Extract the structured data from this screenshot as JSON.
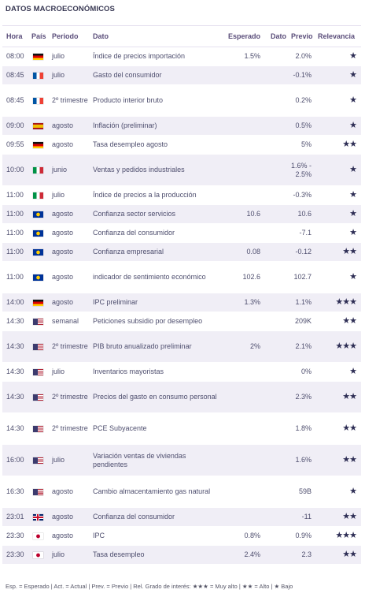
{
  "title": "DATOS MACROECONÓMICOS",
  "columns": {
    "hora": "Hora",
    "pais": "País",
    "periodo": "Periodo",
    "dato": "Dato",
    "esperado": "Esperado",
    "dato_actual": "Dato",
    "previo": "Previo",
    "relevancia": "Relevancia"
  },
  "rows": [
    {
      "hora": "08:00",
      "pais": "de",
      "periodo": "julio",
      "dato": "Índice de precios importación",
      "esperado": "1.5%",
      "actual": "",
      "previo": "2.0%",
      "relevancia": 1
    },
    {
      "hora": "08:45",
      "pais": "fr",
      "periodo": "julio",
      "dato": "Gasto del consumidor",
      "esperado": "",
      "actual": "",
      "previo": "-0.1%",
      "relevancia": 1
    },
    {
      "hora": "08:45",
      "pais": "fr",
      "periodo": "2º trimestre",
      "dato": "Producto interior bruto",
      "esperado": "",
      "actual": "",
      "previo": "0.2%",
      "relevancia": 1
    },
    {
      "hora": "09:00",
      "pais": "es",
      "periodo": "agosto",
      "dato": "Inflación (preliminar)",
      "esperado": "",
      "actual": "",
      "previo": "0.5%",
      "relevancia": 1
    },
    {
      "hora": "09:55",
      "pais": "de",
      "periodo": "agosto",
      "dato": "Tasa desempleo agosto",
      "esperado": "",
      "actual": "",
      "previo": "5%",
      "relevancia": 2
    },
    {
      "hora": "10:00",
      "pais": "it",
      "periodo": "junio",
      "dato": "Ventas y pedidos industriales",
      "esperado": "",
      "actual": "",
      "previo": "1.6% - 2.5%",
      "relevancia": 1
    },
    {
      "hora": "11:00",
      "pais": "it",
      "periodo": "julio",
      "dato": "Índice de precios a la producción",
      "esperado": "",
      "actual": "",
      "previo": "-0.3%",
      "relevancia": 1
    },
    {
      "hora": "11:00",
      "pais": "eu",
      "periodo": "agosto",
      "dato": "Confianza sector servicios",
      "esperado": "10.6",
      "actual": "",
      "previo": "10.6",
      "relevancia": 1
    },
    {
      "hora": "11:00",
      "pais": "eu",
      "periodo": "agosto",
      "dato": "Confianza del consumidor",
      "esperado": "",
      "actual": "",
      "previo": "-7.1",
      "relevancia": 1
    },
    {
      "hora": "11:00",
      "pais": "eu",
      "periodo": "agosto",
      "dato": "Confianza empresarial",
      "esperado": "0.08",
      "actual": "",
      "previo": "-0.12",
      "relevancia": 2
    },
    {
      "hora": "11:00",
      "pais": "eu",
      "periodo": "agosto",
      "dato": "indicador de sentimiento económico",
      "esperado": "102.6",
      "actual": "",
      "previo": "102.7",
      "relevancia": 1
    },
    {
      "hora": "14:00",
      "pais": "de",
      "periodo": "agosto",
      "dato": "IPC preliminar",
      "esperado": "1.3%",
      "actual": "",
      "previo": "1.1%",
      "relevancia": 3
    },
    {
      "hora": "14:30",
      "pais": "us",
      "periodo": "semanal",
      "dato": "Peticiones subsidio por desempleo",
      "esperado": "",
      "actual": "",
      "previo": "209K",
      "relevancia": 2
    },
    {
      "hora": "14:30",
      "pais": "us",
      "periodo": "2º trimestre",
      "dato": "PIB bruto anualizado preliminar",
      "esperado": "2%",
      "actual": "",
      "previo": "2.1%",
      "relevancia": 3
    },
    {
      "hora": "14:30",
      "pais": "us",
      "periodo": "julio",
      "dato": "Inventarios mayoristas",
      "esperado": "",
      "actual": "",
      "previo": "0%",
      "relevancia": 1
    },
    {
      "hora": "14:30",
      "pais": "us",
      "periodo": "2º trimestre",
      "dato": "Precios del gasto en consumo personal",
      "esperado": "",
      "actual": "",
      "previo": "2.3%",
      "relevancia": 2
    },
    {
      "hora": "14:30",
      "pais": "us",
      "periodo": "2º trimestre",
      "dato": "PCE Subyacente",
      "esperado": "",
      "actual": "",
      "previo": "1.8%",
      "relevancia": 2
    },
    {
      "hora": "16:00",
      "pais": "us",
      "periodo": "julio",
      "dato": "Variación ventas de viviendas pendientes",
      "esperado": "",
      "actual": "",
      "previo": "1.6%",
      "relevancia": 2
    },
    {
      "hora": "16:30",
      "pais": "us",
      "periodo": "agosto",
      "dato": "Cambio almacentamiento gas natural",
      "esperado": "",
      "actual": "",
      "previo": "59B",
      "relevancia": 1
    },
    {
      "hora": "23:01",
      "pais": "gb",
      "periodo": "agosto",
      "dato": "Confianza del consumidor",
      "esperado": "",
      "actual": "",
      "previo": "-11",
      "relevancia": 2
    },
    {
      "hora": "23:30",
      "pais": "jp",
      "periodo": "agosto",
      "dato": "IPC",
      "esperado": "0.8%",
      "actual": "",
      "previo": "0.9%",
      "relevancia": 3
    },
    {
      "hora": "23:30",
      "pais": "jp",
      "periodo": "julio",
      "dato": "Tasa desempleo",
      "esperado": "2.4%",
      "actual": "",
      "previo": "2.3",
      "relevancia": 2
    }
  ],
  "row_heights": [
    24,
    24,
    40,
    24,
    24,
    40,
    24,
    24,
    24,
    24,
    40,
    24,
    24,
    40,
    24,
    40,
    40,
    40,
    40,
    24,
    24,
    24
  ],
  "legend": "Esp. = Esperado | Act. = Actual | Prev. = Previo | Rel. Grado de interés: ★★★ = Muy alto | ★★ = Alto | ★ Bajo",
  "colors": {
    "alt_row": "#f0eef6",
    "header_text": "#5a4d7a",
    "star": "#2e2e55"
  }
}
